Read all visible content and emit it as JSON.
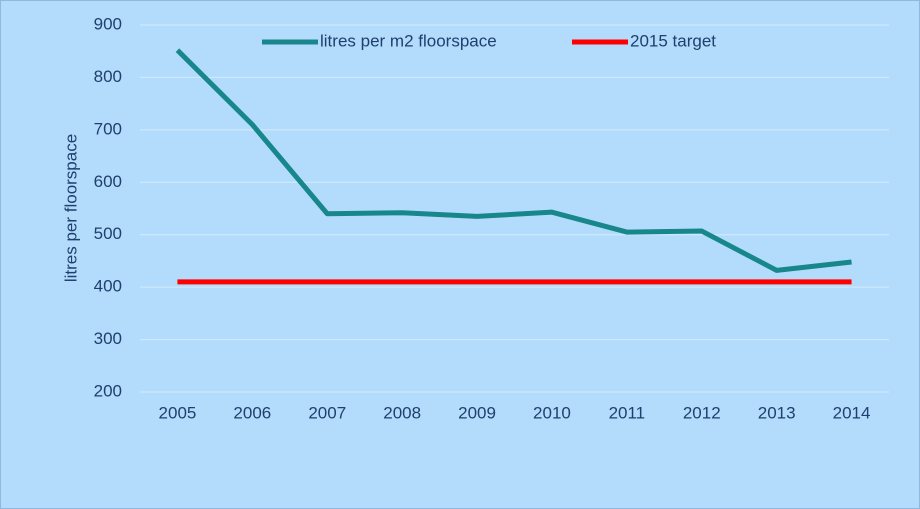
{
  "chart_data": {
    "type": "line",
    "y_label": "litres per floorspace",
    "categories": [
      "2005",
      "2006",
      "2007",
      "2008",
      "2009",
      "2010",
      "2011",
      "2012",
      "2013",
      "2014"
    ],
    "series": [
      {
        "name": "litres per m2 floorspace",
        "color": "#17878b",
        "values": [
          852,
          710,
          540,
          542,
          535,
          543,
          505,
          507,
          432,
          448
        ]
      },
      {
        "name": "2015 target",
        "color": "#ff0000",
        "values": [
          410,
          410,
          410,
          410,
          410,
          410,
          410,
          410,
          410,
          410
        ]
      }
    ],
    "ylim": [
      200,
      900
    ],
    "yticks": [
      200,
      300,
      400,
      500,
      600,
      700,
      800,
      900
    ],
    "grid": true,
    "legend": "top"
  }
}
